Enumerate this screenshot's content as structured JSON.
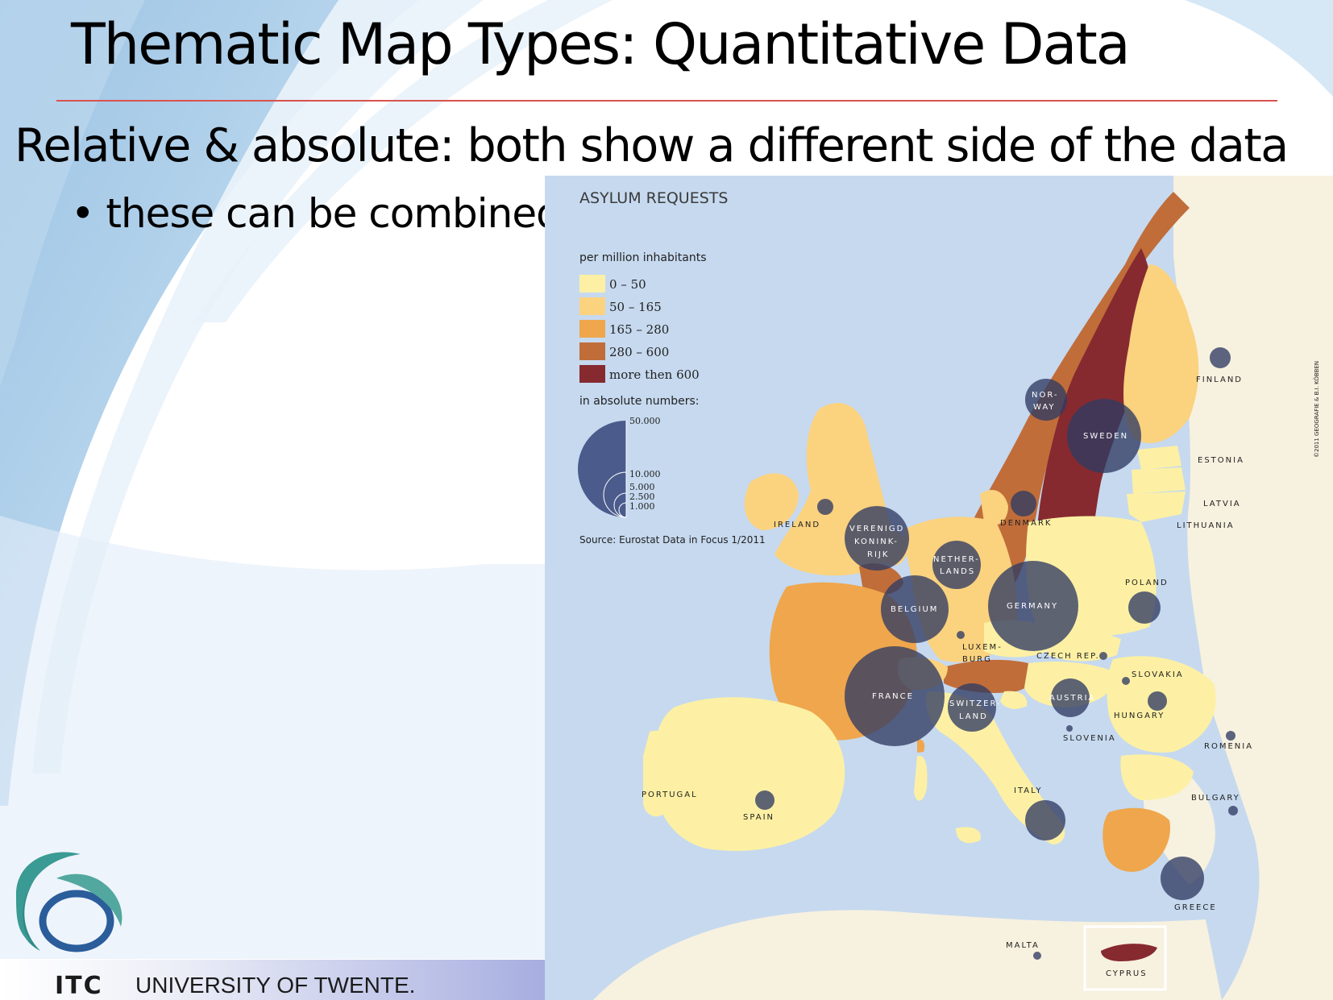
{
  "slide": {
    "title": "Thematic Map Types: Quantitative Data",
    "subtitle_bold": "Relative & absolute",
    "subtitle_rest": ": both show a different side of the data",
    "bullet": "• these can be combined"
  },
  "footer": {
    "logo_text": "ITC",
    "university": "UNIVERSITY OF TWENTE."
  },
  "map": {
    "title": "ASYLUM REQUESTS",
    "legend_relative_title": "per million inhabitants",
    "legend_classes": [
      {
        "label": "0 – 50",
        "color": "#fdf0a4"
      },
      {
        "label": "50 – 165",
        "color": "#fbd27e"
      },
      {
        "label": "165 – 280",
        "color": "#efa64c"
      },
      {
        "label": "280 – 600",
        "color": "#c06d3a"
      },
      {
        "label": "more then 600",
        "color": "#862a30"
      }
    ],
    "legend_absolute_title": "in absolute numbers:",
    "circle_sizes": [
      "50.000",
      "10.000",
      "5.000",
      "2.500",
      "1.000"
    ],
    "source": "Source: Eurostat Data in Focus 1/2011",
    "copyright": "©2011 GEOGRAFIE & B.I. KÖBBEN",
    "symbol_color": "#3c4a7a",
    "water_color": "#c6d9ef",
    "countries": {
      "finland": "FINLAND",
      "norway_1": "NOR-",
      "norway_2": "WAY",
      "sweden": "SWEDEN",
      "estonia": "ESTONIA",
      "latvia": "LATVIA",
      "lithuania": "LITHUANIA",
      "denmark": "DENMARK",
      "ireland": "IRELAND",
      "uk_1": "VERENIGD",
      "uk_2": "KONINK-",
      "uk_3": "RIJK",
      "netherlands_1": "NETHER-",
      "netherlands_2": "LANDS",
      "belgium": "BELGIUM",
      "germany": "GERMANY",
      "poland": "POLAND",
      "luxembourg_1": "LUXEM-",
      "luxembourg_2": "BURG",
      "czech": "CZECH REP.",
      "slovakia": "SLOVAKIA",
      "france": "FRANCE",
      "switzerland_1": "SWITZER-",
      "switzerland_2": "LAND",
      "austria": "AUSTRIA",
      "hungary": "HUNGARY",
      "slovenia": "SLOVENIA",
      "romania": "ROMENIA",
      "portugal": "PORTUGAL",
      "spain": "SPAIN",
      "italy": "ITALY",
      "bulgary": "BULGARY",
      "greece": "GREECE",
      "malta": "MALTA",
      "cyprus": "CYPRUS"
    }
  }
}
